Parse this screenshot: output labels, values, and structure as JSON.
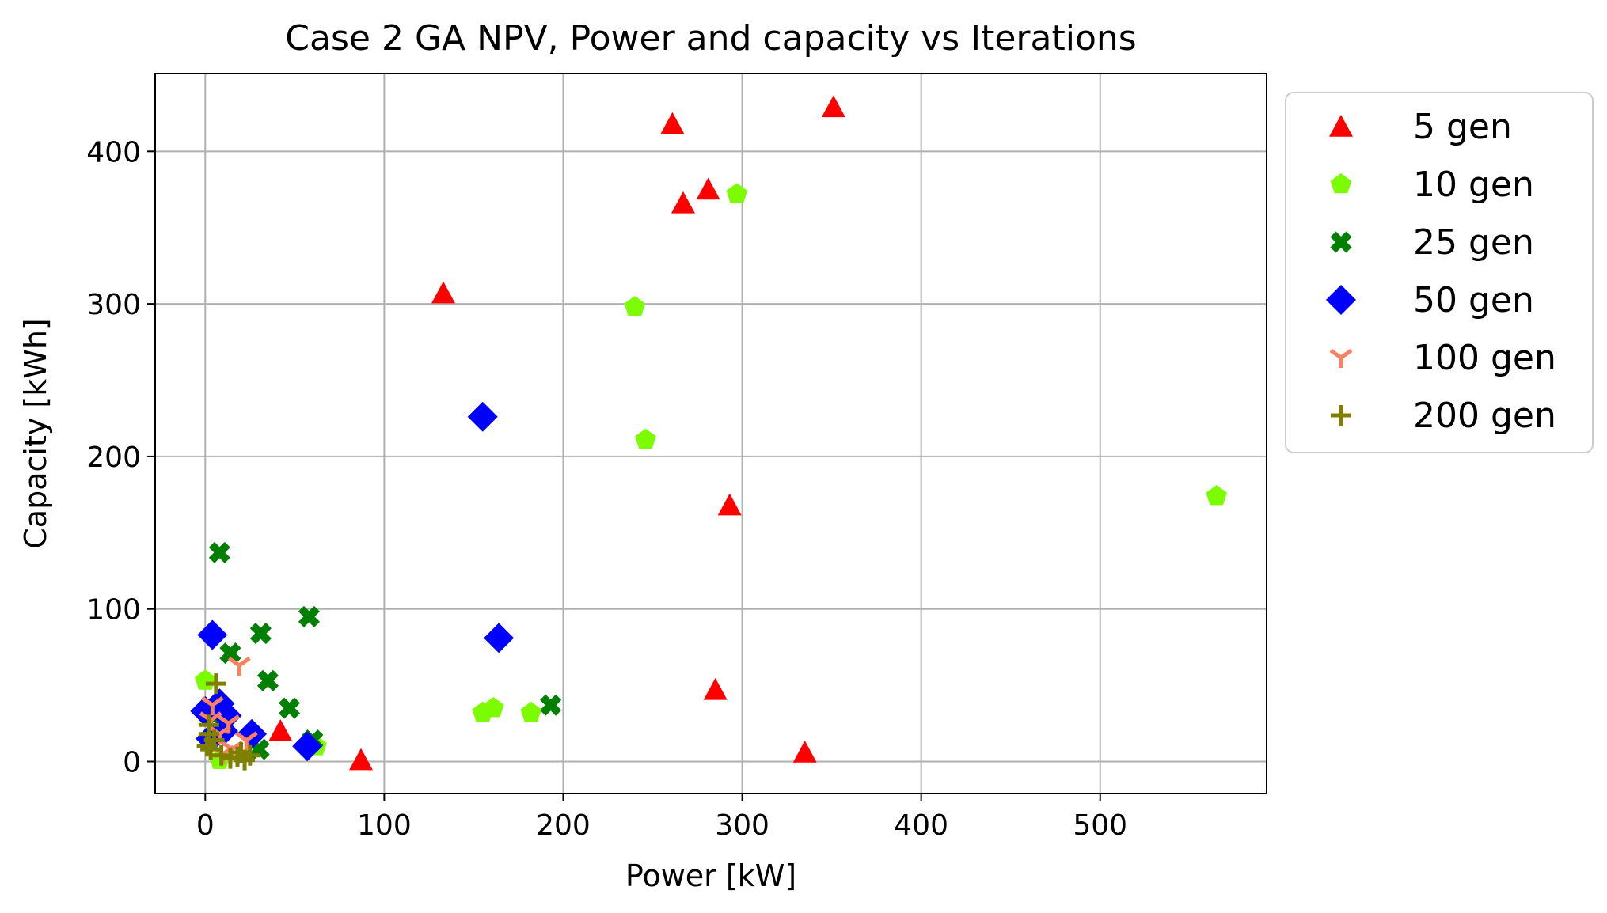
{
  "chart_data": {
    "type": "scatter",
    "title": "Case 2 GA NPV, Power and capacity vs Iterations",
    "xlabel": "Power [kW]",
    "ylabel": "Capacity [kWh]",
    "xlim": [
      -28,
      593
    ],
    "ylim": [
      -21,
      451
    ],
    "xticks": [
      0,
      100,
      200,
      300,
      400,
      500
    ],
    "yticks": [
      0,
      100,
      200,
      300,
      400
    ],
    "grid": true,
    "legend_position": "outside-right",
    "series": [
      {
        "name": "5 gen",
        "marker": "triangle",
        "color": "#ff0000",
        "points": [
          [
            261,
            418
          ],
          [
            351,
            429
          ],
          [
            267,
            366
          ],
          [
            281,
            375
          ],
          [
            133,
            307
          ],
          [
            293,
            168
          ],
          [
            285,
            47
          ],
          [
            335,
            6
          ],
          [
            87,
            1
          ],
          [
            42,
            20
          ]
        ]
      },
      {
        "name": "10 gen",
        "marker": "pentagon",
        "color": "#7cfc00",
        "points": [
          [
            297,
            372
          ],
          [
            240,
            298
          ],
          [
            246,
            211
          ],
          [
            565,
            174
          ],
          [
            155,
            32
          ],
          [
            161,
            35
          ],
          [
            182,
            32
          ],
          [
            0,
            53
          ],
          [
            8,
            1
          ],
          [
            62,
            10
          ]
        ]
      },
      {
        "name": "25 gen",
        "marker": "x",
        "color": "#008000",
        "points": [
          [
            8,
            137
          ],
          [
            58,
            95
          ],
          [
            31,
            84
          ],
          [
            14,
            71
          ],
          [
            35,
            53
          ],
          [
            47,
            35
          ],
          [
            193,
            37
          ],
          [
            60,
            14
          ],
          [
            30,
            8
          ],
          [
            5,
            30
          ]
        ]
      },
      {
        "name": "50 gen",
        "marker": "diamond",
        "color": "#0000ff",
        "points": [
          [
            155,
            226
          ],
          [
            164,
            81
          ],
          [
            4,
            83
          ],
          [
            0,
            33
          ],
          [
            8,
            38
          ],
          [
            12,
            30
          ],
          [
            26,
            18
          ],
          [
            57,
            10
          ],
          [
            3,
            15
          ],
          [
            10,
            20
          ]
        ]
      },
      {
        "name": "100 gen",
        "marker": "tri_down",
        "color": "#fa8060",
        "points": [
          [
            19,
            63
          ],
          [
            4,
            37
          ],
          [
            13,
            25
          ],
          [
            23,
            14
          ],
          [
            8,
            18
          ],
          [
            3,
            27
          ],
          [
            15,
            8
          ],
          [
            10,
            5
          ]
        ]
      },
      {
        "name": "200 gen",
        "marker": "plus",
        "color": "#808000",
        "points": [
          [
            6,
            51
          ],
          [
            2,
            24
          ],
          [
            1,
            10
          ],
          [
            3,
            8
          ],
          [
            5,
            14
          ],
          [
            9,
            4
          ],
          [
            14,
            2
          ],
          [
            18,
            3
          ],
          [
            20,
            6
          ],
          [
            22,
            1
          ],
          [
            25,
            4
          ],
          [
            2,
            18
          ]
        ]
      }
    ]
  }
}
